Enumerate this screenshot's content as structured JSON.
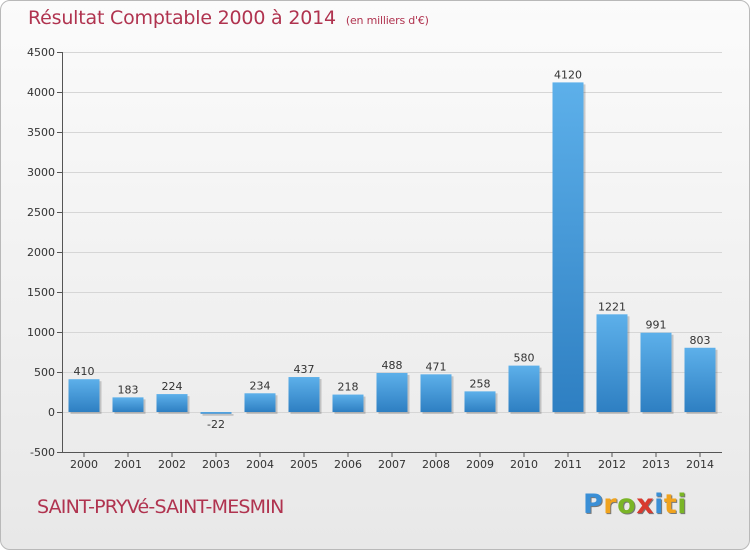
{
  "title": "Résultat Comptable 2000 à 2014",
  "subtitle": "(en milliers d'€)",
  "commune": "SAINT-PRYVé-SAINT-MESMIN",
  "logo": {
    "text": "Proxiti",
    "letters": [
      "P",
      "r",
      "o",
      "x",
      "i",
      "t",
      "i"
    ],
    "colors": [
      "#3a8fd6",
      "#f0a31e",
      "#7ab526",
      "#d83a2f",
      "#3a8fd6",
      "#f0a31e",
      "#7ab526"
    ]
  },
  "colors": {
    "title": "#b0334f",
    "bar_top": "#5db0ea",
    "bar_bottom": "#2e7fc2",
    "grid": "#d6d6d6"
  },
  "chart_data": {
    "type": "bar",
    "categories": [
      "2000",
      "2001",
      "2002",
      "2003",
      "2004",
      "2005",
      "2006",
      "2007",
      "2008",
      "2009",
      "2010",
      "2011",
      "2012",
      "2013",
      "2014"
    ],
    "values": [
      410,
      183,
      224,
      -22,
      234,
      437,
      218,
      488,
      471,
      258,
      580,
      4120,
      1221,
      991,
      803
    ],
    "ylim": [
      -500,
      4500
    ],
    "yticks": [
      -500,
      0,
      500,
      1000,
      1500,
      2000,
      2500,
      3000,
      3500,
      4000,
      4500
    ],
    "grid": true
  }
}
